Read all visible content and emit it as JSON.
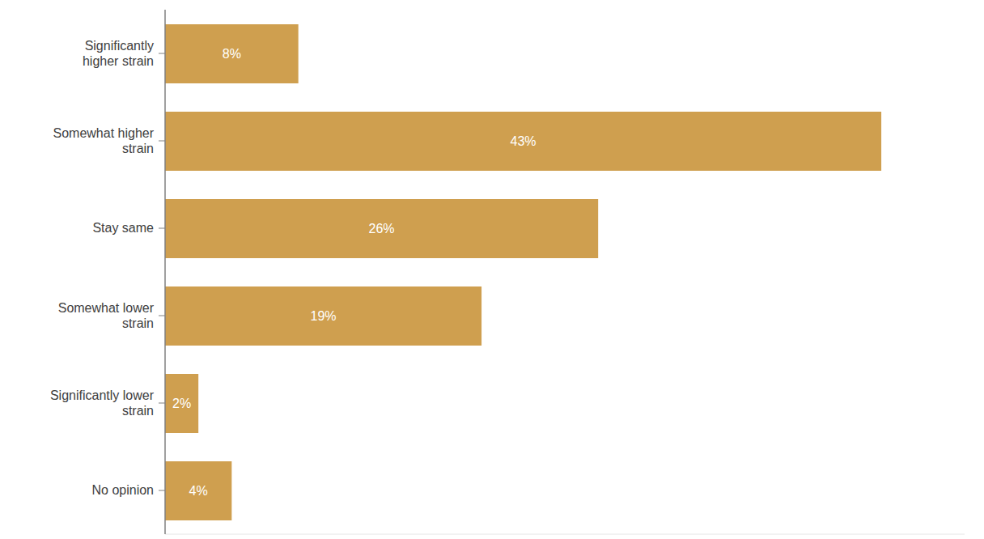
{
  "chart_data": {
    "type": "bar",
    "orientation": "horizontal",
    "categories": [
      "Significantly higher strain",
      "Somewhat higher strain",
      "Stay same",
      "Somewhat lower strain",
      "Significantly lower strain",
      "No opinion"
    ],
    "values": [
      8,
      43,
      26,
      19,
      2,
      4
    ],
    "value_labels": [
      "8%",
      "43%",
      "26%",
      "19%",
      "2%",
      "4%"
    ],
    "color": "#cf9f4f",
    "xlim": [
      0,
      48
    ],
    "data_labels": true,
    "tick_labels": "y",
    "grid": false
  }
}
